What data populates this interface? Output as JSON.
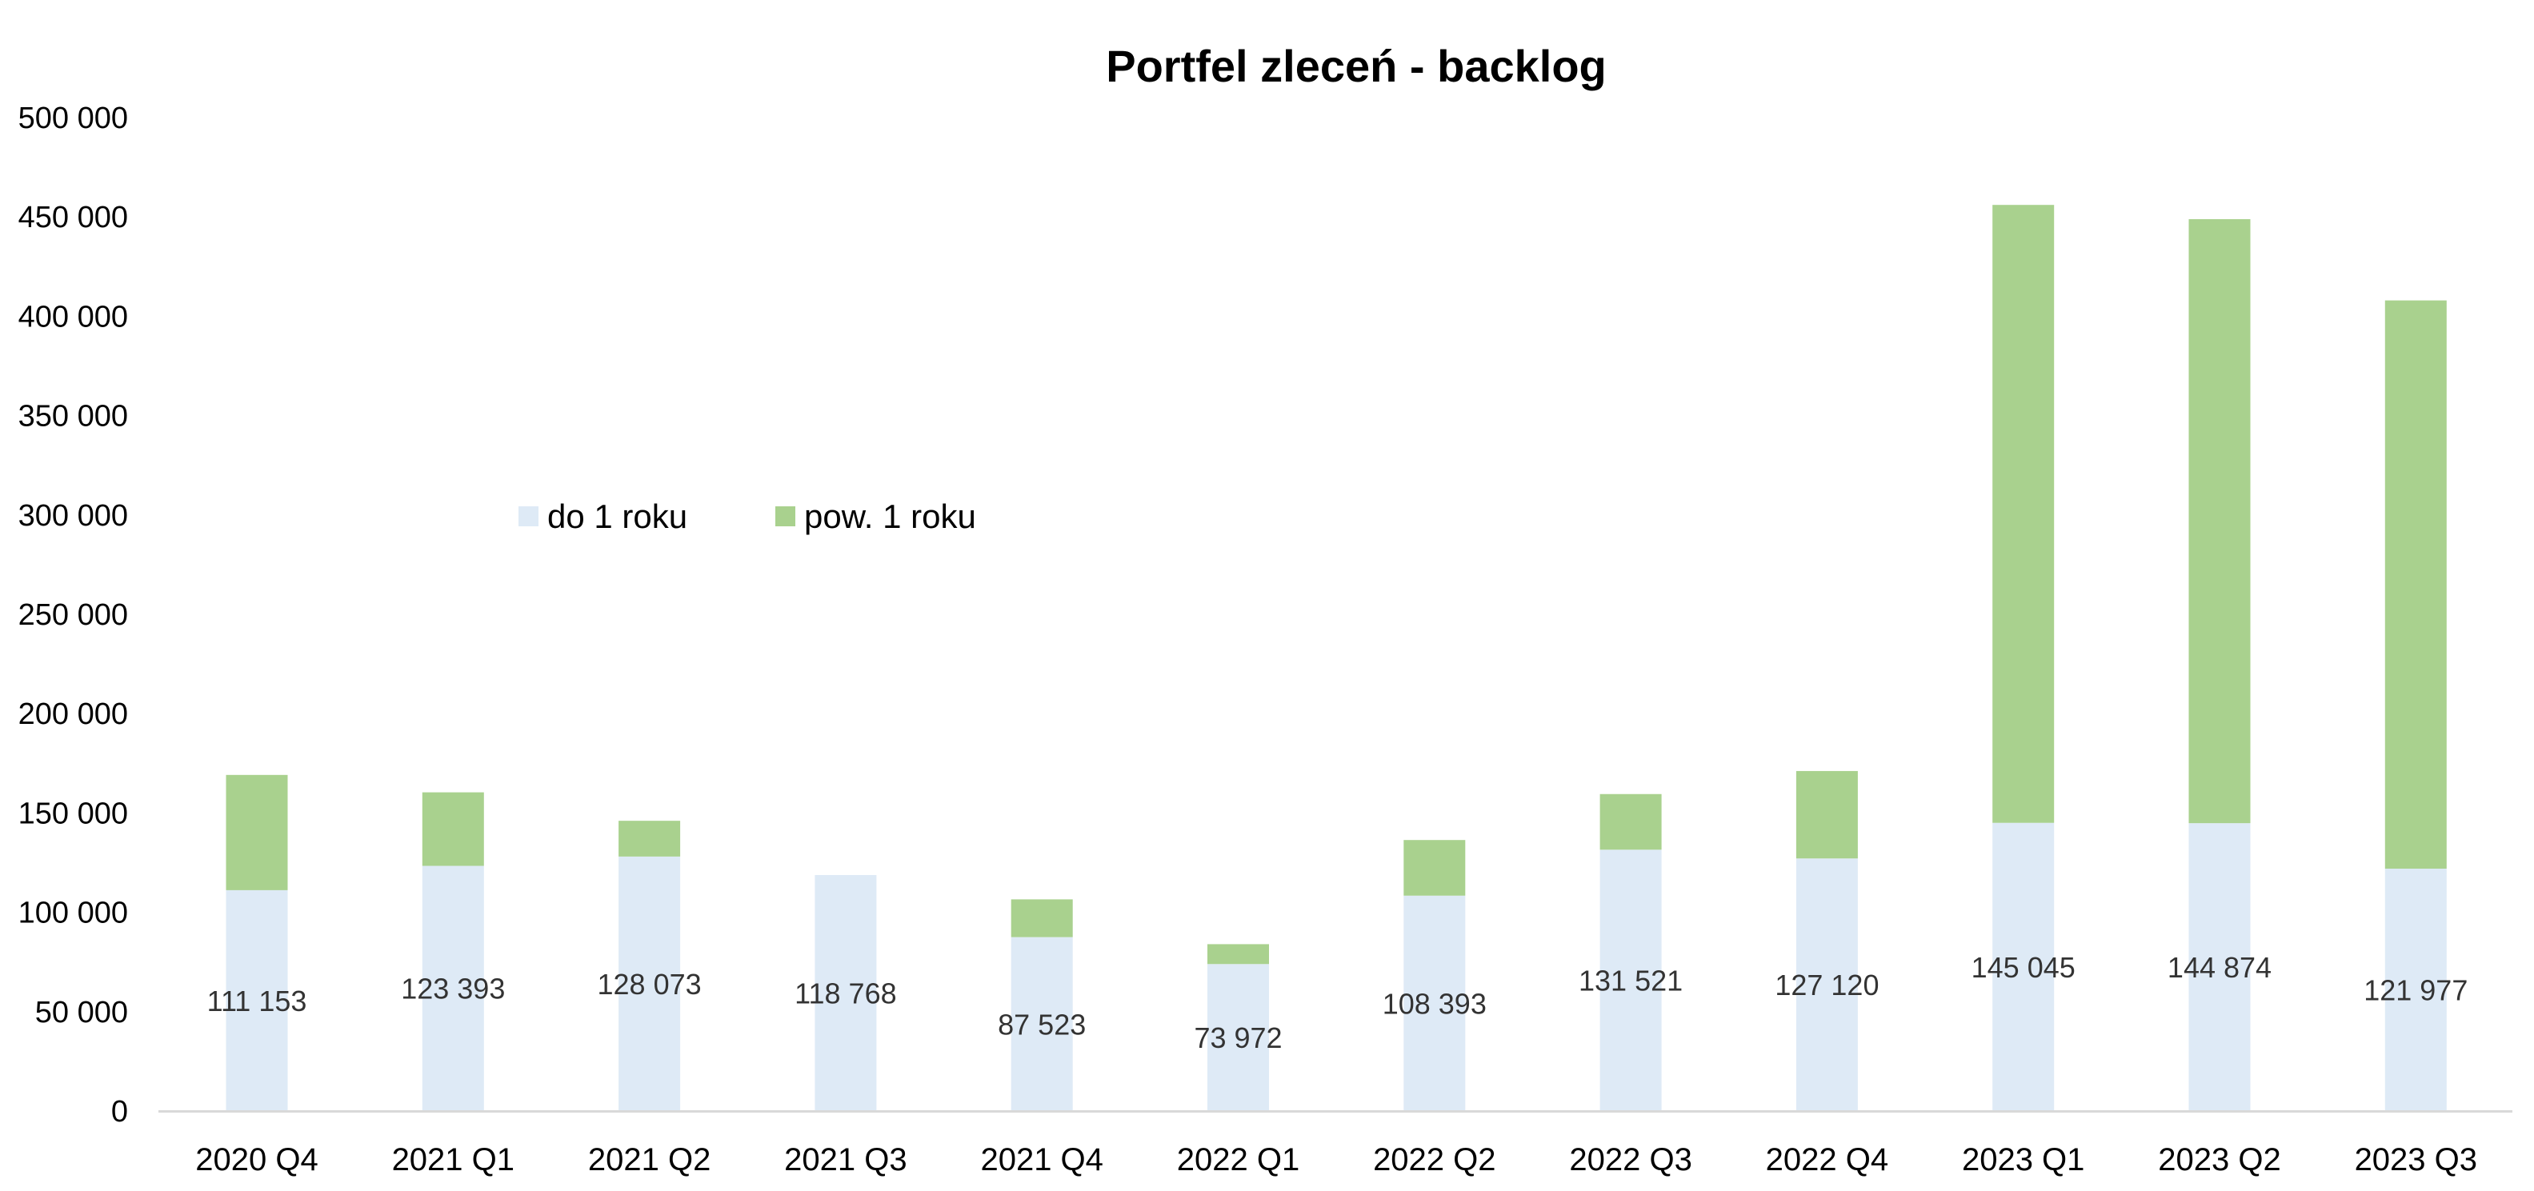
{
  "chart_data": {
    "type": "bar",
    "stacked": true,
    "title": "Portfel zleceń - backlog",
    "xlabel": "",
    "ylabel": "",
    "ylim": [
      0,
      500000
    ],
    "yticks": [
      0,
      50000,
      100000,
      150000,
      200000,
      250000,
      300000,
      350000,
      400000,
      450000,
      500000
    ],
    "ytick_labels": [
      "0",
      "50 000",
      "100 000",
      "150 000",
      "200 000",
      "250 000",
      "300 000",
      "350 000",
      "400 000",
      "450 000",
      "500 000"
    ],
    "grid": false,
    "legend_position": "middle-left",
    "categories": [
      "2020 Q4",
      "2021 Q1",
      "2021 Q2",
      "2021 Q3",
      "2021 Q4",
      "2022 Q1",
      "2022 Q2",
      "2022 Q3",
      "2022 Q4",
      "2023 Q1",
      "2023 Q2",
      "2023 Q3"
    ],
    "series": [
      {
        "name": "do 1 roku",
        "color": "#deeaf6",
        "values": [
          111153,
          123393,
          128073,
          118768,
          87523,
          73972,
          108393,
          131521,
          127120,
          145045,
          144874,
          121977
        ],
        "labels": [
          "111 153",
          "123 393",
          "128 073",
          "118 768",
          "87 523",
          "73 972",
          "108 393",
          "131 521",
          "127 120",
          "145 045",
          "144 874",
          "121 977"
        ]
      },
      {
        "name": "pow. 1 roku",
        "color": "#a9d18e",
        "values": [
          58000,
          37000,
          18000,
          0,
          19000,
          10000,
          28000,
          28000,
          44000,
          311000,
          304000,
          286000
        ]
      }
    ]
  }
}
